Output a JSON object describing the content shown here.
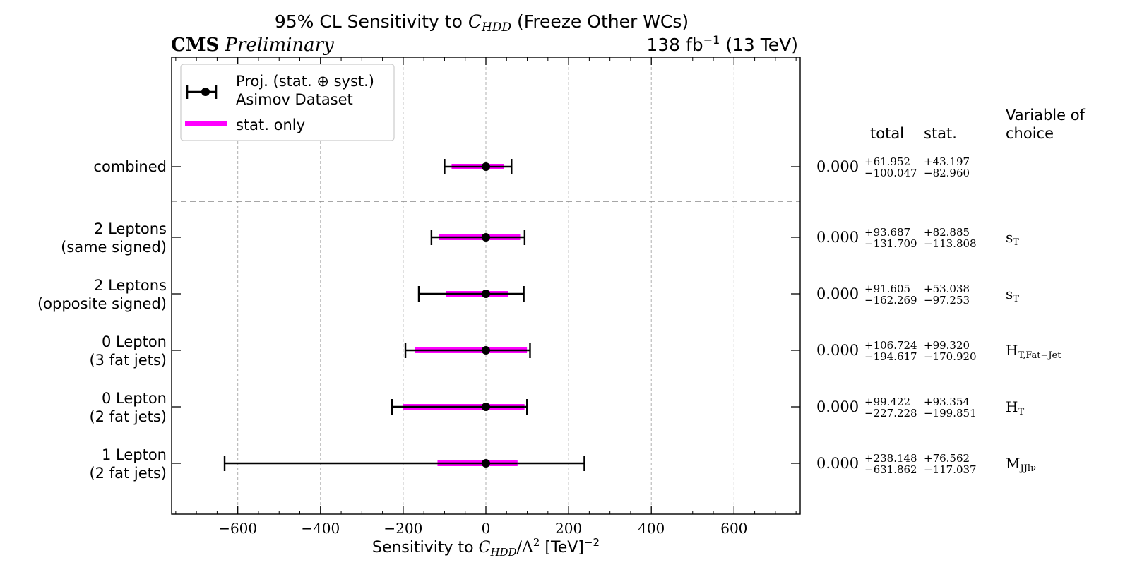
{
  "header": {
    "title_prefix": "95% CL Sensitivity to ",
    "title_var": "C",
    "title_var_sub": "HDD",
    "title_suffix": " (Freeze Other WCs)",
    "experiment": "CMS",
    "status": "Preliminary",
    "lumi": "138 fb",
    "lumi_sup": "−1",
    "energy": " (13 TeV)"
  },
  "legend": {
    "entry1_line1": "Proj. (stat. ⊕ syst.)",
    "entry1_line2": "Asimov Dataset",
    "entry2": "stat. only",
    "stat_color": "#ff00ff"
  },
  "table_headers": {
    "total": "total",
    "stat": "stat.",
    "variable_line1": "Variable of",
    "variable_line2": "choice"
  },
  "xaxis": {
    "label_prefix": "Sensitivity to ",
    "label_var": "C",
    "label_var_sub": "HDD",
    "label_mid": "/Λ",
    "label_sq": "2",
    "label_unit": " [TeV]",
    "label_unit_sup": "−2"
  },
  "chart_data": {
    "type": "errorbar",
    "xlim": [
      -760,
      760
    ],
    "xticks": [
      -600,
      -400,
      -200,
      0,
      200,
      400,
      600
    ],
    "xtick_labels": [
      "−600",
      "−400",
      "−200",
      "0",
      "200",
      "400",
      "600"
    ],
    "grid": true,
    "legend_position": "top-left",
    "rows": [
      {
        "label": [
          "combined"
        ],
        "central": 0.0,
        "central_label": "0.000",
        "total_plus": 61.952,
        "total_minus": 100.047,
        "stat_plus": 43.197,
        "stat_minus": 82.96,
        "total_plus_label": "+61.952",
        "total_minus_label": "−100.047",
        "stat_plus_label": "+43.197",
        "stat_minus_label": "−82.960",
        "variable": "",
        "variable_sub": ""
      },
      {
        "label": [
          "2 Leptons",
          "(same signed)"
        ],
        "central": 0.0,
        "central_label": "0.000",
        "total_plus": 93.687,
        "total_minus": 131.709,
        "stat_plus": 82.885,
        "stat_minus": 113.808,
        "total_plus_label": "+93.687",
        "total_minus_label": "−131.709",
        "stat_plus_label": "+82.885",
        "stat_minus_label": "−113.808",
        "variable": "s",
        "variable_sub": "T"
      },
      {
        "label": [
          "2 Leptons",
          "(opposite signed)"
        ],
        "central": 0.0,
        "central_label": "0.000",
        "total_plus": 91.605,
        "total_minus": 162.269,
        "stat_plus": 53.038,
        "stat_minus": 97.253,
        "total_plus_label": "+91.605",
        "total_minus_label": "−162.269",
        "stat_plus_label": "+53.038",
        "stat_minus_label": "−97.253",
        "variable": "s",
        "variable_sub": "T"
      },
      {
        "label": [
          "0 Lepton",
          "(3 fat jets)"
        ],
        "central": 0.0,
        "central_label": "0.000",
        "total_plus": 106.724,
        "total_minus": 194.617,
        "stat_plus": 99.32,
        "stat_minus": 170.92,
        "total_plus_label": "+106.724",
        "total_minus_label": "−194.617",
        "stat_plus_label": "+99.320",
        "stat_minus_label": "−170.920",
        "variable": "H",
        "variable_sub": "T,Fat−Jet"
      },
      {
        "label": [
          "0 Lepton",
          "(2 fat jets)"
        ],
        "central": 0.0,
        "central_label": "0.000",
        "total_plus": 99.422,
        "total_minus": 227.228,
        "stat_plus": 93.354,
        "stat_minus": 199.851,
        "total_plus_label": "+99.422",
        "total_minus_label": "−227.228",
        "stat_plus_label": "+93.354",
        "stat_minus_label": "−199.851",
        "variable": "H",
        "variable_sub": "T"
      },
      {
        "label": [
          "1 Lepton",
          "(2 fat jets)"
        ],
        "central": 0.0,
        "central_label": "0.000",
        "total_plus": 238.148,
        "total_minus": 631.862,
        "stat_plus": 76.562,
        "stat_minus": 117.037,
        "total_plus_label": "+238.148",
        "total_minus_label": "−631.862",
        "stat_plus_label": "+76.562",
        "stat_minus_label": "−117.037",
        "variable": "M",
        "variable_sub": "JJlν"
      }
    ]
  }
}
